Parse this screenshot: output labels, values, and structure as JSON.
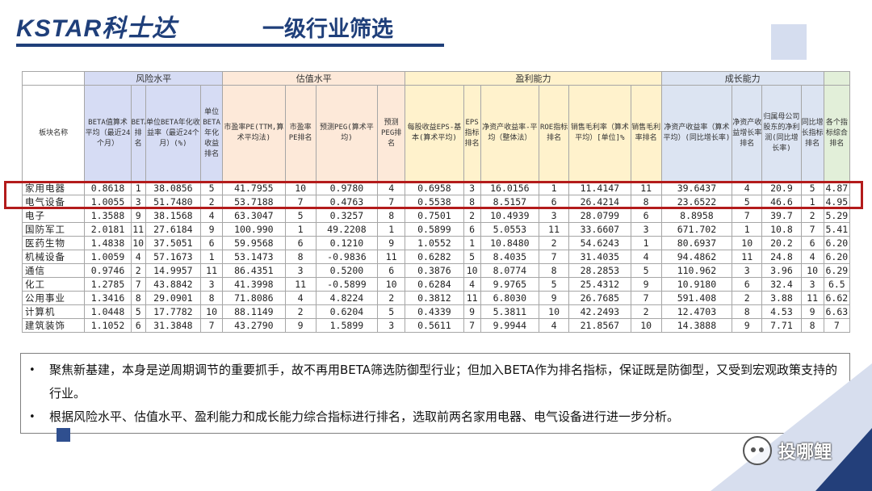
{
  "header": {
    "logo": "KSTAR科士达",
    "title": "一级行业筛选",
    "colors": {
      "brand": "#1f3f7a",
      "highlight": "#b31b1b"
    }
  },
  "table": {
    "groups": {
      "risk": "风险水平",
      "valuation": "估值水平",
      "profit": "盈利能力",
      "growth": "成长能力"
    },
    "columns": [
      "板块名称",
      "BETA值算术平均（最近24个月）",
      "BETA排名",
      "单位BETA年化收益率（最近24个月）(%)",
      "单位BETA年化收益排名",
      "市盈率PE(TTM,算术平均法)",
      "市盈率PE排名",
      "预测PEG(算术平均)",
      "预测PEG排名",
      "每股收益EPS-基本(算术平均)",
      "EPS指标排名",
      "净资产收益率-平均（整体法）",
      "ROE指标排名",
      "销售毛利率（算术平均）[单位]%",
      "销售毛利率排名",
      "净资产收益率（算术平均）(同比增长率)",
      "净资产收益增长率排名",
      "归属母公司股东的净利润(同比增长率)",
      "同比增长指标排名",
      "各个指标综合排名"
    ],
    "rows": [
      [
        "家用电器",
        "0.8618",
        "1",
        "38.0856",
        "5",
        "41.7955",
        "10",
        "0.9780",
        "4",
        "0.6958",
        "3",
        "16.0156",
        "1",
        "11.4147",
        "11",
        "39.6437",
        "4",
        "20.9",
        "5",
        "4.87"
      ],
      [
        "电气设备",
        "1.0055",
        "3",
        "51.7480",
        "2",
        "53.7188",
        "7",
        "0.4763",
        "7",
        "0.5538",
        "8",
        "8.5157",
        "6",
        "26.4214",
        "8",
        "23.6522",
        "5",
        "46.6",
        "1",
        "4.95"
      ],
      [
        "电子",
        "1.3588",
        "9",
        "38.1568",
        "4",
        "63.3047",
        "5",
        "0.3257",
        "8",
        "0.7501",
        "2",
        "10.4939",
        "3",
        "28.0799",
        "6",
        "8.8958",
        "7",
        "39.7",
        "2",
        "5.29"
      ],
      [
        "国防军工",
        "2.0181",
        "11",
        "27.6184",
        "9",
        "100.990",
        "1",
        "49.2208",
        "1",
        "0.5899",
        "6",
        "5.0553",
        "11",
        "33.6607",
        "3",
        "671.702",
        "1",
        "10.8",
        "7",
        "5.41"
      ],
      [
        "医药生物",
        "1.4838",
        "10",
        "37.5051",
        "6",
        "59.9568",
        "6",
        "0.1210",
        "9",
        "1.0552",
        "1",
        "10.8480",
        "2",
        "54.6243",
        "1",
        "80.6937",
        "10",
        "20.2",
        "6",
        "6.20"
      ],
      [
        "机械设备",
        "1.0059",
        "4",
        "57.1673",
        "1",
        "53.1473",
        "8",
        "-0.9836",
        "11",
        "0.6282",
        "5",
        "8.4035",
        "7",
        "31.4035",
        "4",
        "94.4862",
        "11",
        "24.8",
        "4",
        "6.20"
      ],
      [
        "通信",
        "0.9746",
        "2",
        "14.9957",
        "11",
        "86.4351",
        "3",
        "0.5200",
        "6",
        "0.3876",
        "10",
        "8.0774",
        "8",
        "28.2853",
        "5",
        "110.962",
        "3",
        "3.96",
        "10",
        "6.29"
      ],
      [
        "化工",
        "1.2785",
        "7",
        "43.8842",
        "3",
        "41.3998",
        "11",
        "-0.5899",
        "10",
        "0.6284",
        "4",
        "9.9765",
        "5",
        "25.4312",
        "9",
        "10.9180",
        "6",
        "32.4",
        "3",
        "6.5"
      ],
      [
        "公用事业",
        "1.3416",
        "8",
        "29.0901",
        "8",
        "71.8086",
        "4",
        "4.8224",
        "2",
        "0.3812",
        "11",
        "6.8030",
        "9",
        "26.7685",
        "7",
        "591.408",
        "2",
        "3.88",
        "11",
        "6.62"
      ],
      [
        "计算机",
        "1.0448",
        "5",
        "17.7782",
        "10",
        "88.1149",
        "2",
        "0.6204",
        "5",
        "0.4339",
        "9",
        "5.3811",
        "10",
        "42.2493",
        "2",
        "12.4703",
        "8",
        "4.53",
        "9",
        "6.63"
      ],
      [
        "建筑装饰",
        "1.1052",
        "6",
        "31.3848",
        "7",
        "43.2790",
        "9",
        "1.5899",
        "3",
        "0.5611",
        "7",
        "9.9944",
        "4",
        "21.8567",
        "10",
        "14.3888",
        "9",
        "7.71",
        "8",
        "7"
      ]
    ]
  },
  "notes": [
    "聚焦新基建，本身是逆周期调节的重要抓手，故不再用BETA筛选防御型行业；但加入BETA作为排名指标，保证既是防御型，又受到宏观政策支持的行业。",
    "根据风险水平、估值水平、盈利能力和成长能力综合指标进行排名，选取前两名家用电器、电气设备进行进一步分析。"
  ],
  "watermark": {
    "icon": "wechat-icon",
    "text": "投哪鲤"
  }
}
